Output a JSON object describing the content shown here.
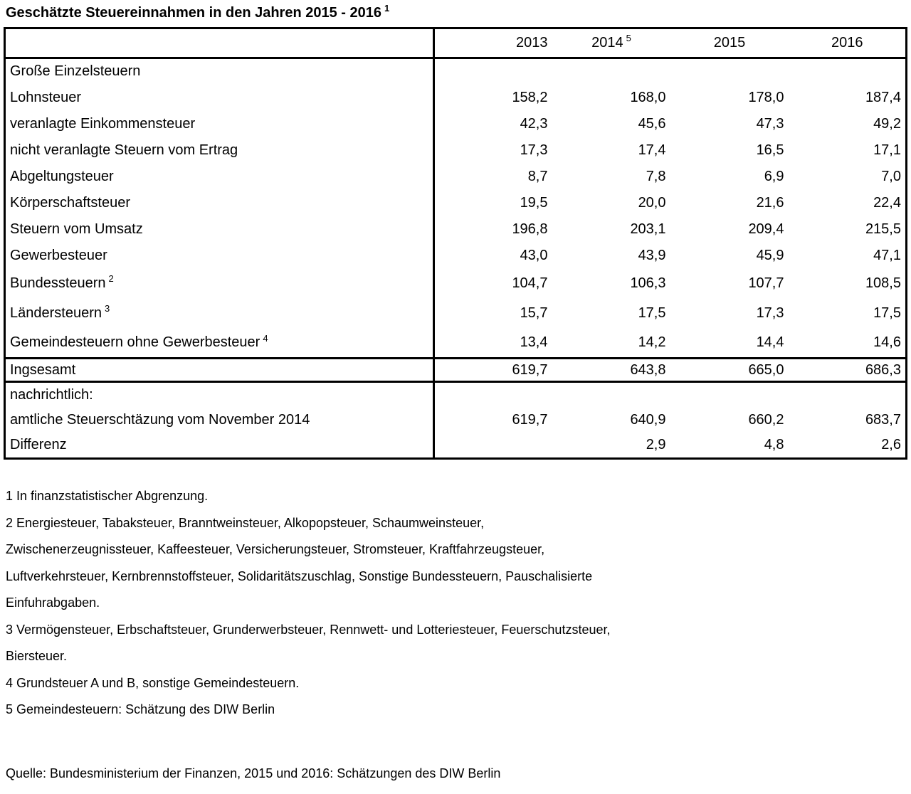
{
  "colors": {
    "text": "#000000",
    "background": "#ffffff",
    "border": "#000000"
  },
  "title": {
    "text": "Geschätzte Steuereinnahmen in den Jahren 2015 - 2016",
    "sup": "1"
  },
  "table": {
    "columns": [
      {
        "label": "2013",
        "sup": ""
      },
      {
        "label": "2014",
        "sup": "5"
      },
      {
        "label": "2015",
        "sup": ""
      },
      {
        "label": "2016",
        "sup": ""
      }
    ],
    "rows": [
      {
        "label": "Große Einzelsteuern",
        "sup": "",
        "values": [
          "",
          "",
          "",
          ""
        ]
      },
      {
        "label": "Lohnsteuer",
        "sup": "",
        "values": [
          "158,2",
          "168,0",
          "178,0",
          "187,4"
        ]
      },
      {
        "label": "veranlagte Einkommensteuer",
        "sup": "",
        "values": [
          "42,3",
          "45,6",
          "47,3",
          "49,2"
        ]
      },
      {
        "label": "nicht veranlagte Steuern vom Ertrag",
        "sup": "",
        "values": [
          "17,3",
          "17,4",
          "16,5",
          "17,1"
        ]
      },
      {
        "label": "Abgeltungsteuer",
        "sup": "",
        "values": [
          "8,7",
          "7,8",
          "6,9",
          "7,0"
        ]
      },
      {
        "label": "Körperschaftsteuer",
        "sup": "",
        "values": [
          "19,5",
          "20,0",
          "21,6",
          "22,4"
        ]
      },
      {
        "label": "Steuern vom Umsatz",
        "sup": "",
        "values": [
          "196,8",
          "203,1",
          "209,4",
          "215,5"
        ]
      },
      {
        "label": "Gewerbesteuer",
        "sup": "",
        "values": [
          "43,0",
          "43,9",
          "45,9",
          "47,1"
        ]
      },
      {
        "label": "Bundessteuern",
        "sup": "2",
        "values": [
          "104,7",
          "106,3",
          "107,7",
          "108,5"
        ]
      },
      {
        "label": "Ländersteuern",
        "sup": "3",
        "values": [
          "15,7",
          "17,5",
          "17,3",
          "17,5"
        ]
      },
      {
        "label": "Gemeindesteuern ohne Gewerbesteuer",
        "sup": "4",
        "values": [
          "13,4",
          "14,2",
          "14,4",
          "14,6"
        ]
      }
    ],
    "total_row": {
      "label": "Ingsesamt",
      "values": [
        "619,7",
        "643,8",
        "665,0",
        "686,3"
      ]
    },
    "memo_rows": [
      {
        "label": "nachrichtlich:",
        "values": [
          "",
          "",
          "",
          ""
        ]
      },
      {
        "label": "amtliche Steuerschtäzung vom November 2014",
        "values": [
          "619,7",
          "640,9",
          "660,2",
          "683,7"
        ]
      },
      {
        "label": "Differenz",
        "values": [
          "",
          "2,9",
          "4,8",
          "2,6"
        ]
      }
    ]
  },
  "footnotes": [
    {
      "lines": [
        "1 In finanzstatistischer Abgrenzung."
      ]
    },
    {
      "lines": [
        "2 Energiesteuer, Tabaksteuer, Branntweinsteuer, Alkopopsteuer, Schaumweinsteuer,",
        "Zwischenerzeugnissteuer, Kaffeesteuer, Versicherungsteuer, Stromsteuer, Kraftfahrzeugsteuer,",
        "Luftverkehrsteuer, Kernbrennstoffsteuer, Solidaritätszuschlag, Sonstige Bundessteuern, Pauschalisierte",
        "Einfuhrabgaben."
      ]
    },
    {
      "lines": [
        "3 Vermögensteuer, Erbschaftsteuer, Grunderwerbsteuer, Rennwett- und Lotteriesteuer, Feuerschutzsteuer,",
        "Biersteuer."
      ]
    },
    {
      "lines": [
        "4 Grundsteuer A und B, sonstige Gemeindesteuern."
      ]
    },
    {
      "lines": [
        "5 Gemeindesteuern: Schätzung des DIW Berlin"
      ]
    }
  ],
  "source": "Quelle: Bundesministerium der Finanzen, 2015 und 2016: Schätzungen des DIW Berlin"
}
